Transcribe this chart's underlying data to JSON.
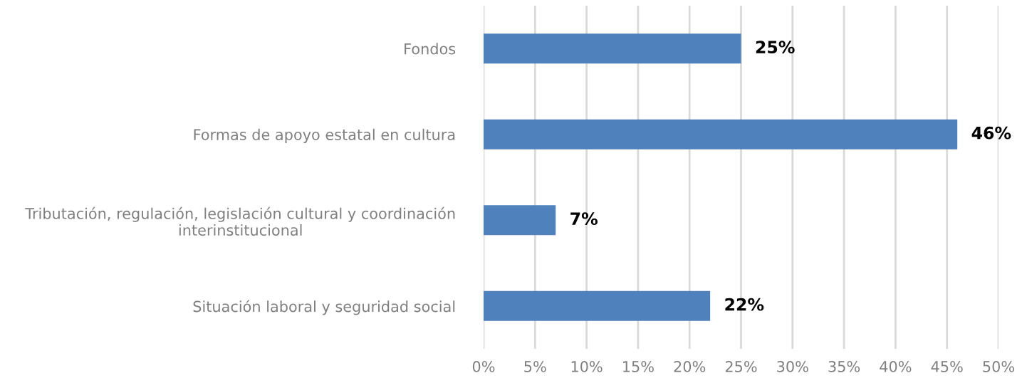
{
  "chart_data": {
    "type": "bar",
    "orientation": "horizontal",
    "categories": [
      "Fondos",
      "Formas de apoyo estatal en cultura",
      "Tributación, regulación, legislación cultural y coordinación\ninterinstitucional",
      "Situación laboral y seguridad social"
    ],
    "values": [
      25,
      46,
      7,
      22
    ],
    "color": "#4f81bd",
    "value_labels": [
      "25%",
      "46%",
      "7%",
      "22%"
    ],
    "xlim": [
      0,
      50
    ],
    "xticks": [
      {
        "value": 0,
        "label": "0%"
      },
      {
        "value": 5,
        "label": "5%"
      },
      {
        "value": 10,
        "label": "10%"
      },
      {
        "value": 15,
        "label": "15%"
      },
      {
        "value": 20,
        "label": "20%"
      },
      {
        "value": 25,
        "label": "25%"
      },
      {
        "value": 30,
        "label": "30%"
      },
      {
        "value": 35,
        "label": "35%"
      },
      {
        "value": 40,
        "label": "40%"
      },
      {
        "value": 45,
        "label": "45%"
      },
      {
        "value": 50,
        "label": "50%"
      }
    ],
    "grid": "x",
    "legend": false
  }
}
